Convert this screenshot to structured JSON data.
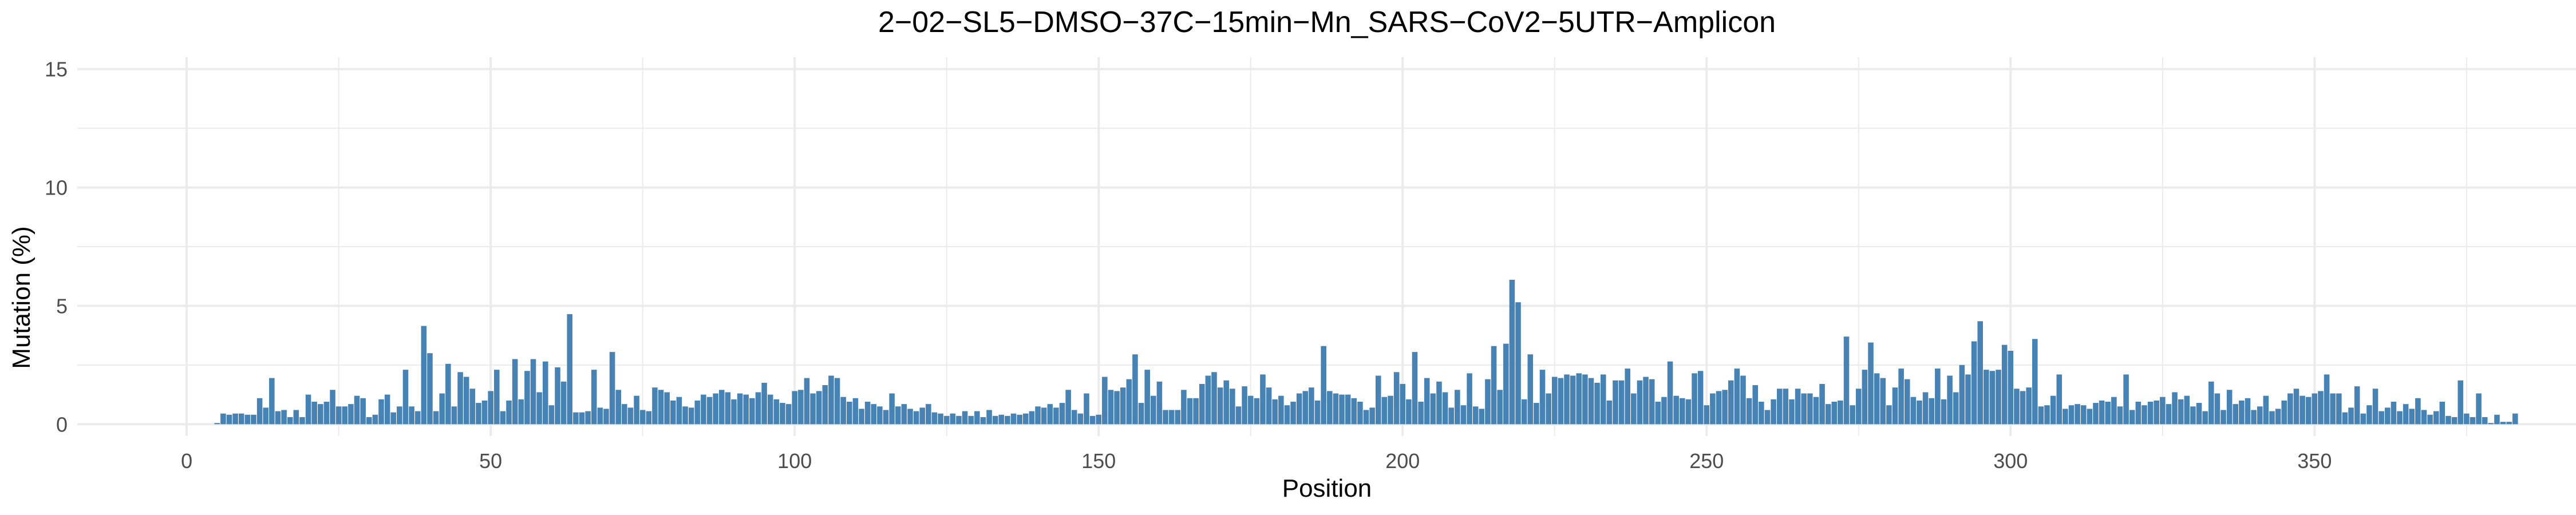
{
  "chart_data": {
    "type": "bar",
    "title": "2−02−SL5−DMSO−37C−15min−Mn_SARS−CoV2−5UTR−Amplicon",
    "xlabel": "Position",
    "ylabel": "Mutation (%)",
    "xlim": [
      -18,
      393
    ],
    "ylim": [
      -0.5,
      15.5
    ],
    "x_ticks": [
      0,
      50,
      100,
      150,
      200,
      250,
      300,
      350
    ],
    "y_ticks": [
      0,
      5,
      10,
      15
    ],
    "x_minor_ticks": [
      25,
      75,
      125,
      175,
      225,
      275,
      325,
      375
    ],
    "y_minor_ticks": [
      2.5,
      7.5,
      12.5
    ],
    "grid": true,
    "legend": "none",
    "bar_color": "#4682b4",
    "x_start": 5,
    "values": [
      0.05,
      0.45,
      0.4,
      0.45,
      0.45,
      0.4,
      0.4,
      1.1,
      0.7,
      1.95,
      0.55,
      0.6,
      0.3,
      0.6,
      0.3,
      1.25,
      0.95,
      0.85,
      0.95,
      1.45,
      0.75,
      0.75,
      0.85,
      1.2,
      1.1,
      0.3,
      0.4,
      1.05,
      1.25,
      0.5,
      0.75,
      2.3,
      0.75,
      0.55,
      4.15,
      3.0,
      0.55,
      1.3,
      2.55,
      0.75,
      2.2,
      2.0,
      1.5,
      0.9,
      1.0,
      1.4,
      2.3,
      0.55,
      1.0,
      2.75,
      1.05,
      2.25,
      2.75,
      1.35,
      2.65,
      0.8,
      2.4,
      1.8,
      4.65,
      0.5,
      0.5,
      0.55,
      2.3,
      0.7,
      0.65,
      3.05,
      1.45,
      0.85,
      0.7,
      1.2,
      0.6,
      0.55,
      1.55,
      1.45,
      1.35,
      1.0,
      1.15,
      0.75,
      0.7,
      1.0,
      1.25,
      1.15,
      1.3,
      1.45,
      1.35,
      1.05,
      1.3,
      1.25,
      1.1,
      1.35,
      1.75,
      1.25,
      1.05,
      0.9,
      0.85,
      1.4,
      1.45,
      1.95,
      1.3,
      1.4,
      1.65,
      2.05,
      1.95,
      1.15,
      0.95,
      1.1,
      0.65,
      0.95,
      0.85,
      0.75,
      0.6,
      1.3,
      0.75,
      0.85,
      0.65,
      0.55,
      0.7,
      0.85,
      0.5,
      0.45,
      0.35,
      0.45,
      0.35,
      0.55,
      0.35,
      0.55,
      0.3,
      0.6,
      0.35,
      0.4,
      0.35,
      0.45,
      0.4,
      0.45,
      0.55,
      0.75,
      0.7,
      0.85,
      0.7,
      0.9,
      1.45,
      0.6,
      0.45,
      1.3,
      0.35,
      0.4,
      2.0,
      1.45,
      1.4,
      1.55,
      1.9,
      2.95,
      0.9,
      2.3,
      1.2,
      1.8,
      0.6,
      0.6,
      0.6,
      1.45,
      1.1,
      1.1,
      1.7,
      2.05,
      2.2,
      1.55,
      1.85,
      1.5,
      0.75,
      1.6,
      1.2,
      1.1,
      2.1,
      1.55,
      1.05,
      1.2,
      0.8,
      0.95,
      1.3,
      1.4,
      1.55,
      1.0,
      3.3,
      1.4,
      1.3,
      1.25,
      1.25,
      1.1,
      0.95,
      0.6,
      0.7,
      2.05,
      1.15,
      1.2,
      2.2,
      1.7,
      1.05,
      3.05,
      0.95,
      1.95,
      1.3,
      1.8,
      1.35,
      0.7,
      1.45,
      0.8,
      2.15,
      0.75,
      0.65,
      1.9,
      3.3,
      1.45,
      3.4,
      6.1,
      5.15,
      1.05,
      2.95,
      0.9,
      2.3,
      1.3,
      2.0,
      1.95,
      2.1,
      2.05,
      2.15,
      2.1,
      1.95,
      1.75,
      2.1,
      1.0,
      1.85,
      1.85,
      2.35,
      1.3,
      1.85,
      2.0,
      1.9,
      0.95,
      1.15,
      2.65,
      1.2,
      1.1,
      1.05,
      2.15,
      2.25,
      0.8,
      1.3,
      1.4,
      1.45,
      1.85,
      2.35,
      2.05,
      1.1,
      1.65,
      0.95,
      0.6,
      1.05,
      1.5,
      1.5,
      1.05,
      1.5,
      1.3,
      1.3,
      1.15,
      1.7,
      0.85,
      0.95,
      1.0,
      3.7,
      0.8,
      1.5,
      2.3,
      3.45,
      2.15,
      1.95,
      0.8,
      1.55,
      2.35,
      1.9,
      1.15,
      1.0,
      1.35,
      1.1,
      2.35,
      1.05,
      2.05,
      1.35,
      2.5,
      2.1,
      3.5,
      4.35,
      2.3,
      2.25,
      2.3,
      3.35,
      3.1,
      1.5,
      1.4,
      1.55,
      3.6,
      0.75,
      0.8,
      1.2,
      2.1,
      0.65,
      0.8,
      0.85,
      0.8,
      0.65,
      0.9,
      1.0,
      0.95,
      1.15,
      0.75,
      2.1,
      0.6,
      0.95,
      0.8,
      0.95,
      1.0,
      1.15,
      0.85,
      1.35,
      1.05,
      1.2,
      0.75,
      0.9,
      0.55,
      1.8,
      1.3,
      0.6,
      1.45,
      0.85,
      1.0,
      1.1,
      0.6,
      0.75,
      1.2,
      0.55,
      0.65,
      1.0,
      1.3,
      1.5,
      1.2,
      1.15,
      1.3,
      1.4,
      2.1,
      1.3,
      1.3,
      0.5,
      0.7,
      1.6,
      0.45,
      0.8,
      1.5,
      0.55,
      0.7,
      0.95,
      0.55,
      0.85,
      0.65,
      1.1,
      0.6,
      0.4,
      0.55,
      0.95,
      0.35,
      0.3,
      1.85,
      0.45,
      0.3,
      1.3,
      0.3,
      0.05,
      0.4,
      0.1,
      0.1,
      0.45
    ]
  }
}
